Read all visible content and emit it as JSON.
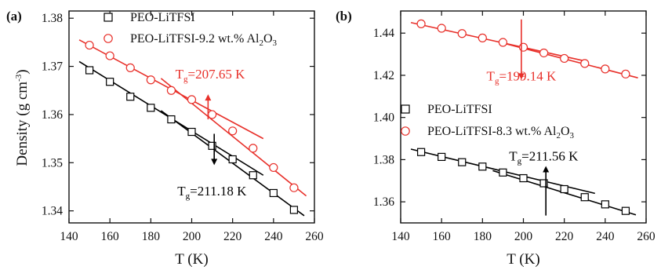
{
  "chart_data": [
    {
      "type": "scatter",
      "panel_label": "(a)",
      "xlabel": "T (K)",
      "ylabel": "Density (g cm-3)",
      "ylabel_parts": {
        "main": "Density (g cm",
        "sup": "-3",
        "close": ")"
      },
      "xlim": [
        140,
        260
      ],
      "ylim": [
        1.3375,
        1.3815
      ],
      "xticks": [
        140,
        160,
        180,
        200,
        220,
        240,
        260
      ],
      "yticks": [
        1.34,
        1.35,
        1.36,
        1.37,
        1.38
      ],
      "xtick_labels": [
        "140",
        "160",
        "180",
        "200",
        "220",
        "240",
        "260"
      ],
      "ytick_labels": [
        "1.34",
        "1.35",
        "1.36",
        "1.37",
        "1.38"
      ],
      "legend_position": "top",
      "series": [
        {
          "name": "PEO-LiTFSI",
          "legend_parts": {
            "main": "PEO-LiTFSI"
          },
          "color": "#000000",
          "marker": "square",
          "x": [
            150,
            160,
            170,
            180,
            190,
            200,
            210,
            220,
            230,
            240,
            250
          ],
          "y": [
            1.3692,
            1.3668,
            1.3637,
            1.3614,
            1.359,
            1.3564,
            1.3535,
            1.3507,
            1.3474,
            1.3437,
            1.3402
          ],
          "fits": [
            {
              "x": [
                145,
                235
              ],
              "y": [
                1.371,
                1.3474
              ]
            },
            {
              "x": [
                185,
                255
              ],
              "y": [
                1.3608,
                1.339
              ]
            }
          ]
        },
        {
          "name": "PEO-LiTFSI-9.2 wt.% Al2O3",
          "legend_parts": {
            "main": "PEO-LiTFSI-9.2 wt.% Al",
            "sub": "2",
            "post": "O",
            "sub2": "3"
          },
          "color": "#e8302a",
          "marker": "circle",
          "x": [
            150,
            160,
            170,
            180,
            190,
            200,
            210,
            220,
            230,
            240,
            250
          ],
          "y": [
            1.3744,
            1.3722,
            1.3697,
            1.3672,
            1.365,
            1.3631,
            1.36,
            1.3566,
            1.353,
            1.349,
            1.3448
          ],
          "fits": [
            {
              "x": [
                145,
                235
              ],
              "y": [
                1.3755,
                1.355
              ]
            },
            {
              "x": [
                185,
                256
              ],
              "y": [
                1.3675,
                1.3431
              ]
            }
          ]
        }
      ],
      "annotations": [
        {
          "text_main": "T",
          "text_sub": "g",
          "text_rest": "=207.65 K",
          "color": "#e8302a",
          "x": 192,
          "y": 1.3675,
          "arrow": "up",
          "arrow_x": 208,
          "arrow_from": 1.359,
          "arrow_to": 1.3642
        },
        {
          "text_main": "T",
          "text_sub": "g",
          "text_rest": "=211.18 K",
          "color": "#000000",
          "x": 193,
          "y": 1.3432,
          "arrow": "down",
          "arrow_x": 211,
          "arrow_from": 1.356,
          "arrow_to": 1.3495
        }
      ]
    },
    {
      "type": "scatter",
      "panel_label": "(b)",
      "xlabel": "T (K)",
      "ylabel": "",
      "xlim": [
        140,
        260
      ],
      "ylim": [
        1.35,
        1.4505
      ],
      "xticks": [
        140,
        160,
        180,
        200,
        220,
        240,
        260
      ],
      "yticks": [
        1.36,
        1.38,
        1.4,
        1.42,
        1.44
      ],
      "xtick_labels": [
        "140",
        "160",
        "180",
        "200",
        "220",
        "240",
        "260"
      ],
      "ytick_labels": [
        "1.36",
        "1.38",
        "1.40",
        "1.42",
        "1.44"
      ],
      "legend_position": "middle-right",
      "series": [
        {
          "name": "PEO-LiTFSI",
          "legend_parts": {
            "main": "PEO-LiTFSI"
          },
          "color": "#000000",
          "marker": "square",
          "x": [
            150,
            160,
            170,
            180,
            190,
            200,
            210,
            220,
            230,
            240,
            250
          ],
          "y": [
            1.3836,
            1.3813,
            1.3788,
            1.3767,
            1.3739,
            1.3712,
            1.3688,
            1.366,
            1.3622,
            1.3588,
            1.3557
          ],
          "fits": [
            {
              "x": [
                145,
                235
              ],
              "y": [
                1.385,
                1.364
              ]
            },
            {
              "x": [
                185,
                255
              ],
              "y": [
                1.3748,
                1.3538
              ]
            }
          ]
        },
        {
          "name": "PEO-LiTFSI-8.3 wt.% Al2O3",
          "legend_parts": {
            "main": "PEO-LiTFSI-8.3 wt.% Al",
            "sub": "2",
            "post": "O",
            "sub2": "3"
          },
          "color": "#e8302a",
          "marker": "circle",
          "x": [
            150,
            160,
            170,
            180,
            190,
            200,
            210,
            220,
            230,
            240,
            250
          ],
          "y": [
            1.4444,
            1.4423,
            1.4398,
            1.4377,
            1.4356,
            1.4333,
            1.4306,
            1.428,
            1.4256,
            1.423,
            1.4206
          ],
          "fits": [
            {
              "x": [
                145,
                230
              ],
              "y": [
                1.445,
                1.4268
              ]
            },
            {
              "x": [
                190,
                256
              ],
              "y": [
                1.4353,
                1.4188
              ]
            }
          ]
        }
      ],
      "annotations": [
        {
          "text_main": "T",
          "text_sub": "g",
          "text_rest": "=199.14 K",
          "color": "#e8302a",
          "x": 182,
          "y": 1.4175,
          "arrow": "down",
          "arrow_x": 199,
          "arrow_from": 1.4465,
          "arrow_to": 1.418
        },
        {
          "text_main": "T",
          "text_sub": "g",
          "text_rest": "=211.56 K",
          "color": "#000000",
          "x": 193,
          "y": 1.3795,
          "arrow": "up",
          "arrow_x": 211,
          "arrow_from": 1.3535,
          "arrow_to": 1.377
        }
      ]
    }
  ]
}
